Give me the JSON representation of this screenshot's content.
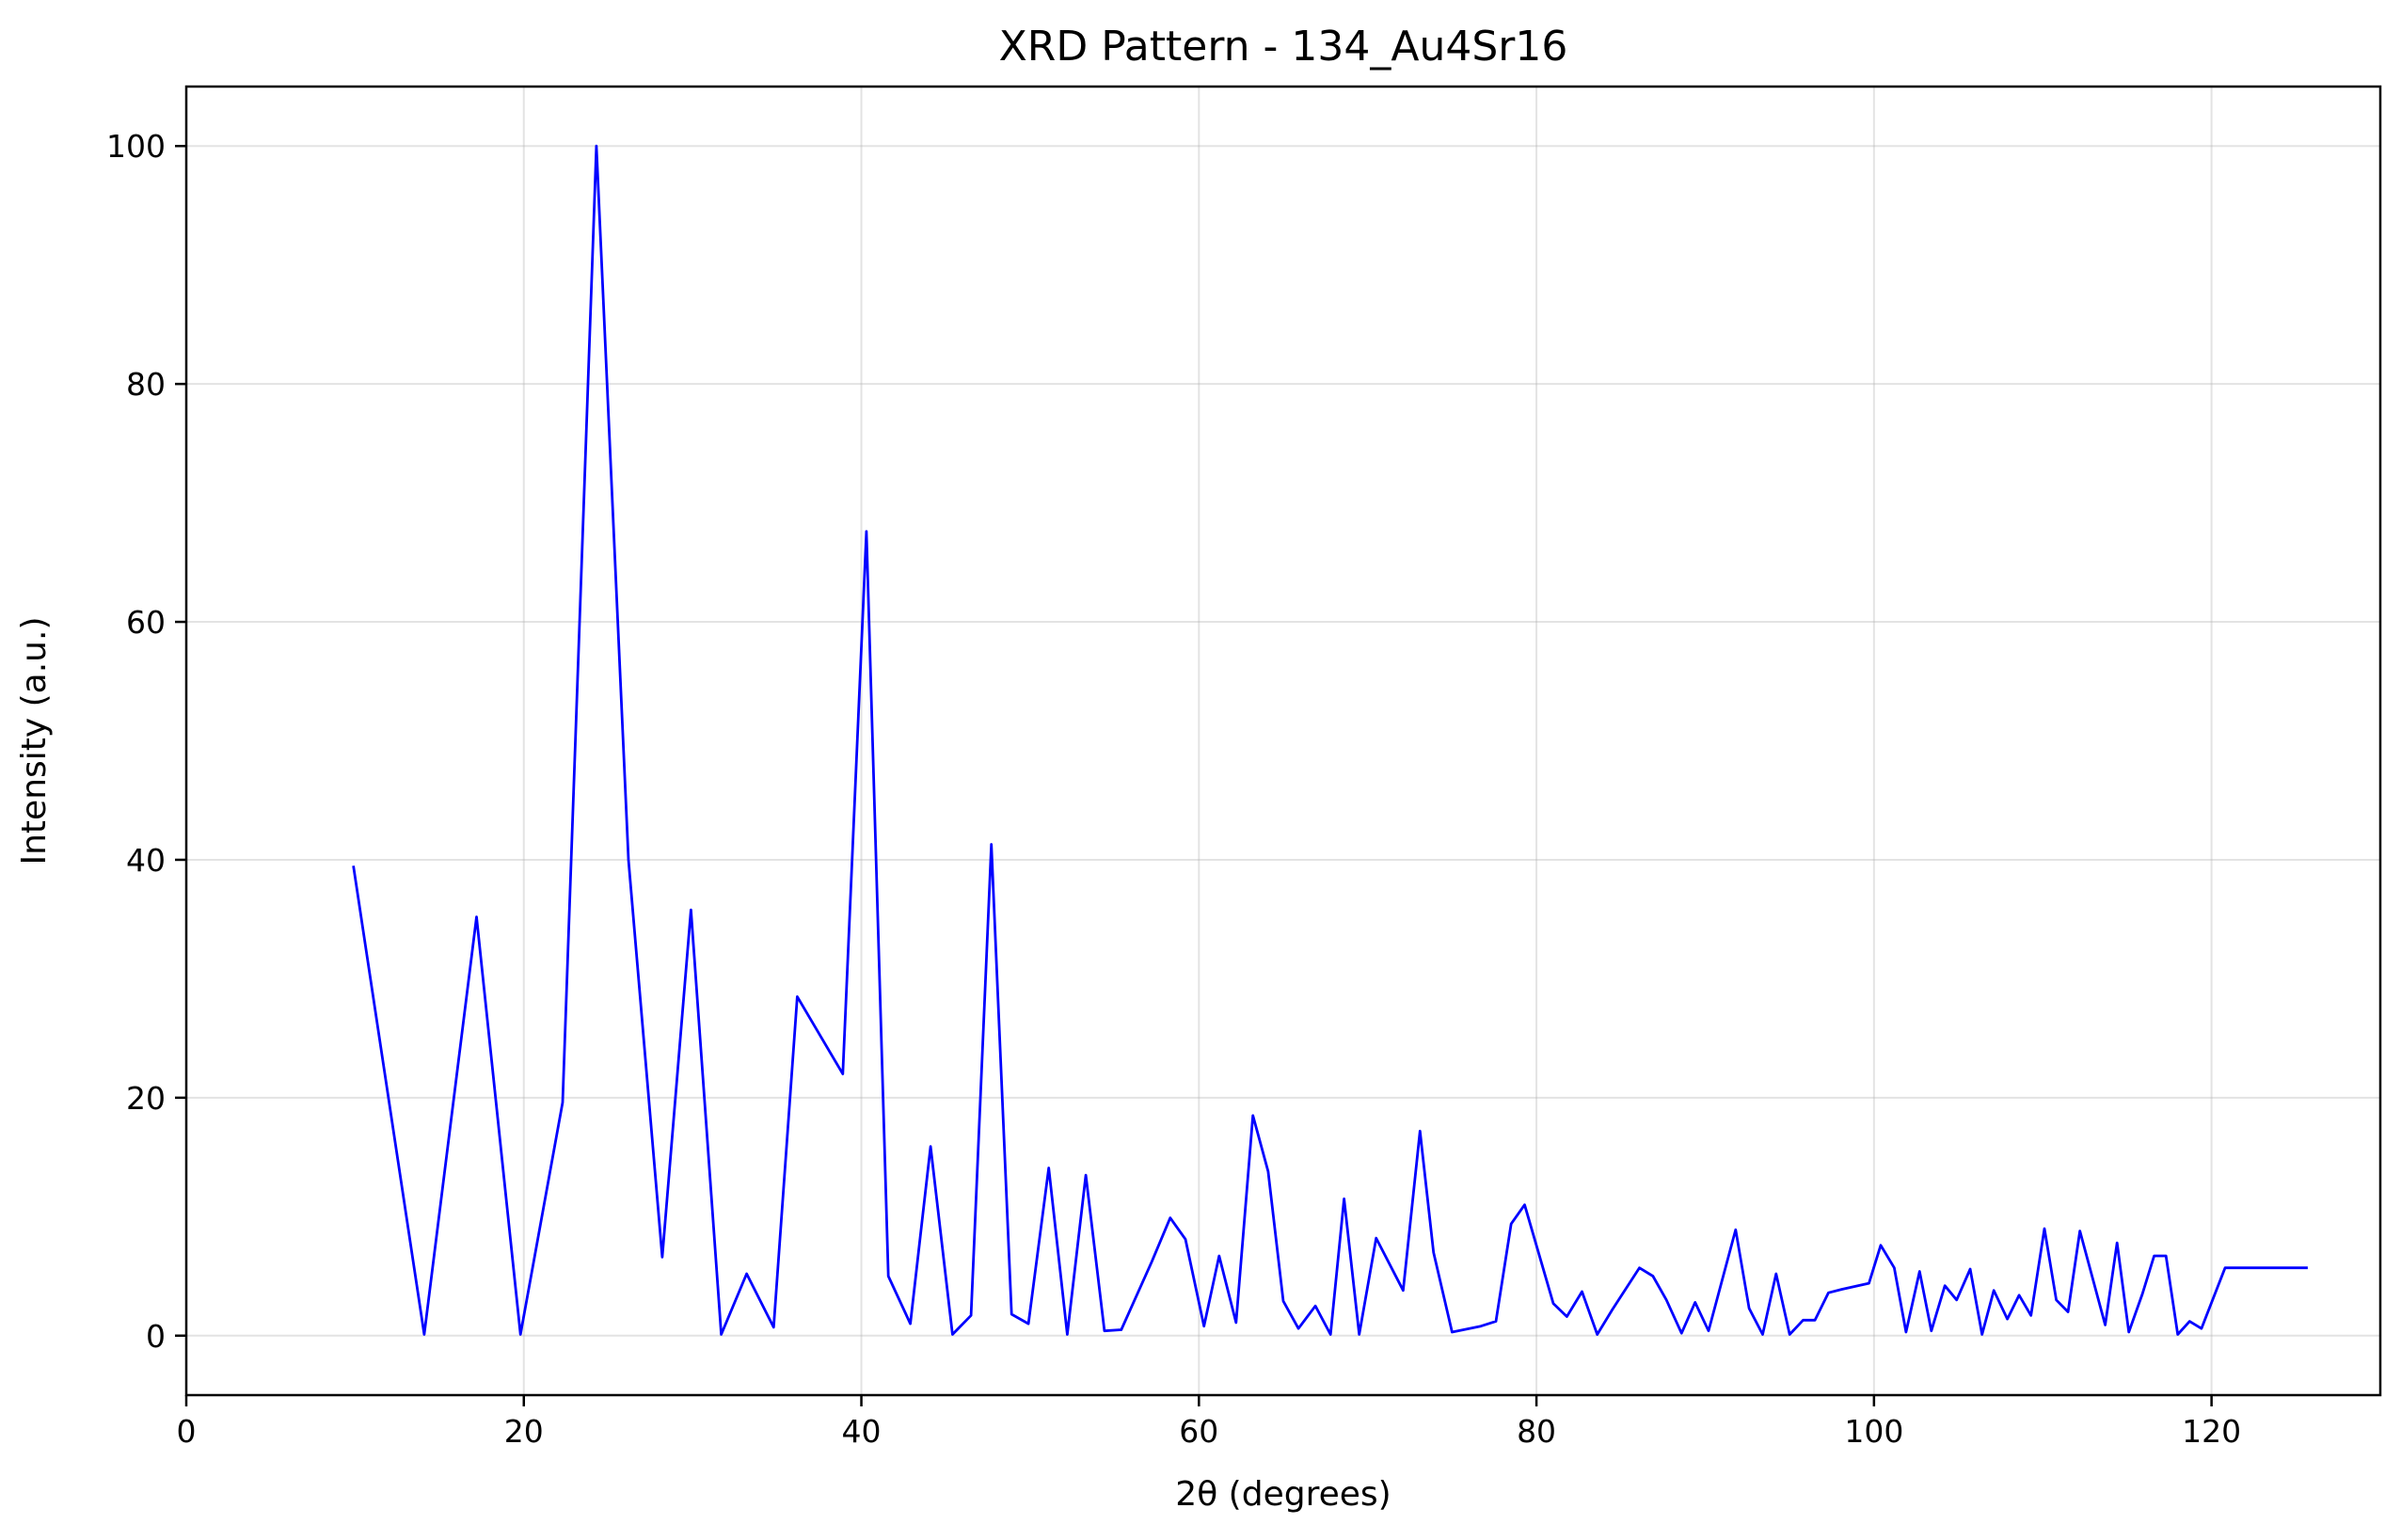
{
  "chart_data": {
    "type": "line",
    "title": "XRD Pattern - 134_Au4Sr16",
    "xlabel": "2θ (degrees)",
    "ylabel": "Intensity (a.u.)",
    "xlim": [
      0,
      130
    ],
    "ylim": [
      -5,
      105
    ],
    "xticks": [
      0,
      20,
      40,
      60,
      80,
      100,
      120
    ],
    "yticks": [
      0,
      20,
      40,
      60,
      80,
      100
    ],
    "grid": true,
    "series": [
      {
        "color": "#0000ff",
        "x": [
          9.9,
          14.1,
          17.2,
          19.8,
          22.3,
          24.3,
          26.2,
          28.2,
          29.9,
          31.7,
          33.2,
          34.8,
          36.2,
          38.9,
          40.3,
          41.6,
          42.9,
          44.1,
          45.4,
          46.5,
          47.7,
          48.9,
          49.9,
          51.1,
          52.2,
          53.3,
          54.4,
          55.4,
          57.2,
          58.3,
          59.2,
          60.3,
          61.2,
          62.2,
          63.2,
          64.1,
          65.0,
          65.9,
          66.9,
          67.8,
          68.6,
          69.5,
          70.5,
          72.1,
          73.1,
          73.9,
          75.0,
          76.7,
          77.6,
          78.5,
          79.3,
          81.0,
          81.8,
          82.7,
          83.6,
          84.5,
          86.1,
          86.9,
          87.7,
          88.6,
          89.4,
          90.2,
          91.8,
          92.6,
          93.4,
          94.2,
          95.0,
          95.8,
          96.5,
          97.3,
          98.1,
          99.7,
          100.4,
          101.2,
          101.9,
          102.7,
          103.4,
          104.2,
          104.9,
          105.7,
          106.4,
          107.1,
          107.9,
          108.6,
          109.3,
          110.1,
          110.8,
          111.5,
          112.2,
          113.7,
          114.4,
          115.1,
          115.9,
          116.6,
          117.3,
          118.0,
          118.7,
          119.4,
          120.8,
          121.5,
          122.2,
          122.9,
          123.7,
          124.3,
          125.0,
          125.7
        ],
        "y": [
          39.5,
          0.1,
          35.2,
          0.1,
          19.6,
          100.0,
          40.0,
          6.6,
          35.8,
          0.1,
          5.2,
          0.7,
          28.5,
          22.0,
          67.6,
          5.0,
          1.0,
          15.9,
          0.1,
          1.7,
          41.3,
          1.8,
          1.0,
          14.1,
          0.1,
          13.5,
          0.4,
          0.5,
          6.2,
          9.9,
          8.1,
          0.8,
          6.7,
          1.1,
          18.5,
          13.8,
          2.9,
          0.6,
          2.5,
          0.1,
          11.5,
          0.1,
          8.2,
          3.8,
          17.2,
          7.0,
          0.3,
          0.8,
          1.2,
          9.4,
          11.0,
          2.7,
          1.6,
          3.7,
          0.1,
          2.2,
          5.7,
          5.0,
          3.0,
          0.2,
          2.8,
          0.4,
          8.9,
          2.3,
          0.1,
          5.2,
          0.1,
          1.3,
          1.3,
          3.6,
          3.9,
          4.4,
          7.6,
          5.7,
          0.3,
          5.4,
          0.4,
          4.2,
          3.0,
          5.6,
          0.1,
          3.8,
          1.4,
          3.4,
          1.7,
          9.0,
          3.0,
          2.0,
          8.8,
          0.9,
          7.8,
          0.3,
          3.5,
          6.7,
          6.7,
          0.1,
          1.2,
          0.6,
          5.7,
          5.7,
          5.7,
          5.7,
          5.7,
          5.7,
          5.7,
          5.7
        ]
      }
    ]
  }
}
